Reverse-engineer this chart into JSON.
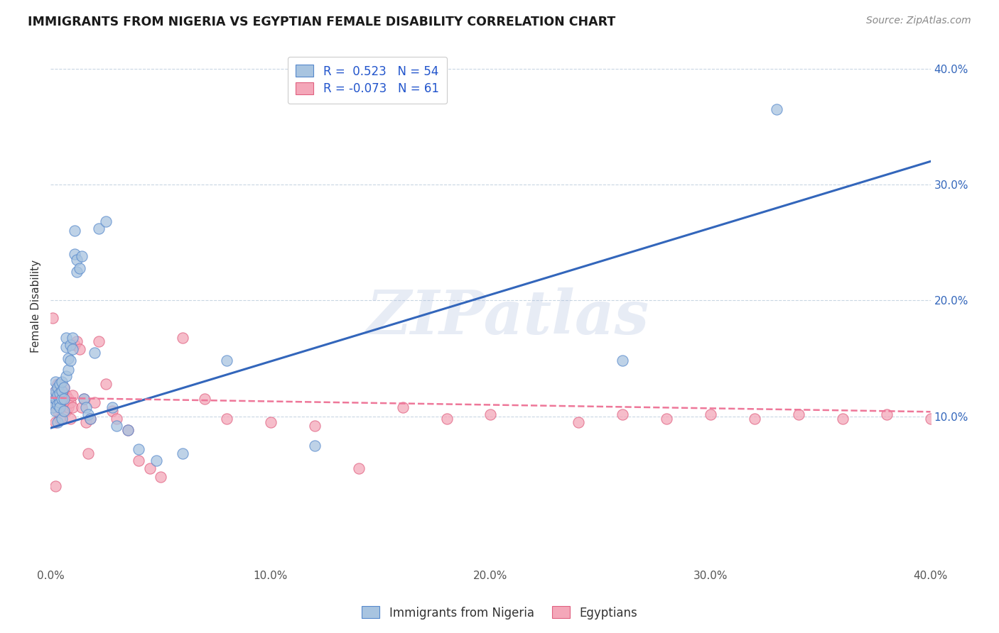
{
  "title": "IMMIGRANTS FROM NIGERIA VS EGYPTIAN FEMALE DISABILITY CORRELATION CHART",
  "source": "Source: ZipAtlas.com",
  "ylabel": "Female Disability",
  "watermark": "ZIPatlas",
  "legend1_label": "Immigrants from Nigeria",
  "legend2_label": "Egyptians",
  "r1": 0.523,
  "n1": 54,
  "r2": -0.073,
  "n2": 61,
  "color_blue": "#A8C4E0",
  "color_pink": "#F4A7B9",
  "edge_blue": "#5588CC",
  "edge_pink": "#E06080",
  "line_blue": "#3366BB",
  "line_pink": "#EE7799",
  "x_min": 0.0,
  "x_max": 0.4,
  "y_min": -0.03,
  "y_max": 0.42,
  "yticks": [
    0.1,
    0.2,
    0.3,
    0.4
  ],
  "xticks": [
    0.0,
    0.1,
    0.2,
    0.3,
    0.4
  ],
  "blue_line_x0": 0.0,
  "blue_line_y0": 0.09,
  "blue_line_x1": 0.4,
  "blue_line_y1": 0.32,
  "pink_line_x0": 0.0,
  "pink_line_y0": 0.116,
  "pink_line_x1": 0.4,
  "pink_line_y1": 0.104,
  "blue_points_x": [
    0.001,
    0.001,
    0.001,
    0.002,
    0.002,
    0.002,
    0.002,
    0.003,
    0.003,
    0.003,
    0.003,
    0.004,
    0.004,
    0.004,
    0.004,
    0.005,
    0.005,
    0.005,
    0.005,
    0.006,
    0.006,
    0.006,
    0.007,
    0.007,
    0.007,
    0.008,
    0.008,
    0.009,
    0.009,
    0.01,
    0.01,
    0.011,
    0.011,
    0.012,
    0.012,
    0.013,
    0.014,
    0.015,
    0.016,
    0.017,
    0.018,
    0.02,
    0.022,
    0.025,
    0.028,
    0.03,
    0.035,
    0.04,
    0.048,
    0.06,
    0.08,
    0.12,
    0.26,
    0.33
  ],
  "blue_points_y": [
    0.112,
    0.118,
    0.108,
    0.115,
    0.122,
    0.105,
    0.13,
    0.11,
    0.118,
    0.125,
    0.095,
    0.12,
    0.112,
    0.128,
    0.108,
    0.115,
    0.122,
    0.098,
    0.13,
    0.125,
    0.115,
    0.105,
    0.16,
    0.168,
    0.135,
    0.15,
    0.14,
    0.162,
    0.148,
    0.168,
    0.158,
    0.26,
    0.24,
    0.235,
    0.225,
    0.228,
    0.238,
    0.115,
    0.108,
    0.102,
    0.098,
    0.155,
    0.262,
    0.268,
    0.108,
    0.092,
    0.088,
    0.072,
    0.062,
    0.068,
    0.148,
    0.075,
    0.148,
    0.365
  ],
  "pink_points_x": [
    0.001,
    0.001,
    0.001,
    0.002,
    0.002,
    0.002,
    0.003,
    0.003,
    0.003,
    0.004,
    0.004,
    0.004,
    0.005,
    0.005,
    0.005,
    0.006,
    0.006,
    0.007,
    0.007,
    0.008,
    0.008,
    0.009,
    0.009,
    0.01,
    0.01,
    0.011,
    0.012,
    0.013,
    0.014,
    0.015,
    0.016,
    0.017,
    0.018,
    0.02,
    0.022,
    0.025,
    0.028,
    0.03,
    0.035,
    0.04,
    0.045,
    0.05,
    0.06,
    0.07,
    0.08,
    0.1,
    0.12,
    0.14,
    0.16,
    0.18,
    0.2,
    0.24,
    0.26,
    0.28,
    0.3,
    0.32,
    0.34,
    0.36,
    0.38,
    0.4,
    0.002
  ],
  "pink_points_y": [
    0.185,
    0.112,
    0.118,
    0.108,
    0.122,
    0.095,
    0.115,
    0.105,
    0.128,
    0.118,
    0.112,
    0.098,
    0.122,
    0.108,
    0.115,
    0.125,
    0.112,
    0.105,
    0.118,
    0.115,
    0.108,
    0.112,
    0.098,
    0.118,
    0.108,
    0.162,
    0.165,
    0.158,
    0.108,
    0.115,
    0.095,
    0.068,
    0.098,
    0.112,
    0.165,
    0.128,
    0.105,
    0.098,
    0.088,
    0.062,
    0.055,
    0.048,
    0.168,
    0.115,
    0.098,
    0.095,
    0.092,
    0.055,
    0.108,
    0.098,
    0.102,
    0.095,
    0.102,
    0.098,
    0.102,
    0.098,
    0.102,
    0.098,
    0.102,
    0.098,
    0.04
  ]
}
